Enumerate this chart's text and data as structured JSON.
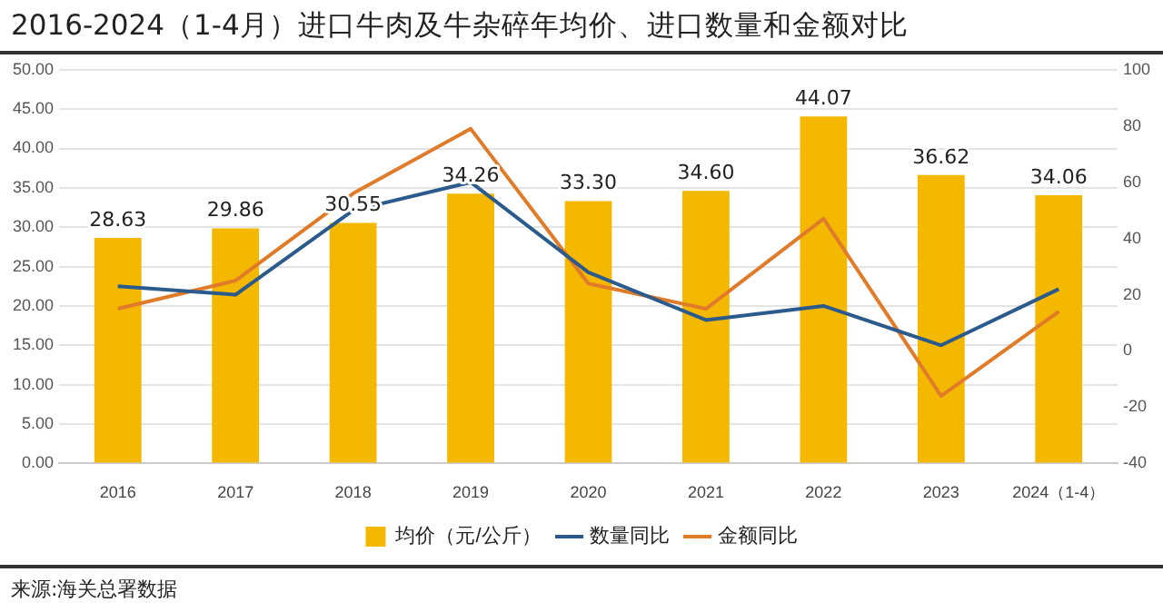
{
  "chart_data": {
    "type": "bar",
    "title": "2016-2024（1-4月）进口牛肉及牛杂碎年均价、进口数量和金额对比",
    "categories": [
      "2016",
      "2017",
      "2018",
      "2019",
      "2020",
      "2021",
      "2022",
      "2023",
      "2024（1-4）"
    ],
    "series": [
      {
        "name": "均价（元/公斤）",
        "color": "#f5b800",
        "values": [
          28.63,
          29.86,
          30.55,
          34.26,
          33.3,
          34.6,
          44.07,
          36.62,
          34.06
        ],
        "value_labels": [
          "28.63",
          "29.86",
          "30.55",
          "34.26",
          "33.30",
          "34.60",
          "44.07",
          "36.62",
          "34.06"
        ]
      },
      {
        "name": "数量同比",
        "type": "line",
        "axis": "y2",
        "color": "#2b5a8c",
        "values": [
          23,
          20,
          50,
          60,
          28,
          11,
          16,
          2,
          22
        ]
      },
      {
        "name": "金额同比",
        "type": "line",
        "axis": "y2",
        "color": "#e07b29",
        "values": [
          15,
          25,
          56,
          79,
          24,
          15,
          47,
          -16,
          14
        ]
      }
    ],
    "ylim": [
      0,
      50
    ],
    "yticks": [
      {
        "value": 0,
        "label": "0.00"
      },
      {
        "value": 5,
        "label": "5.00"
      },
      {
        "value": 10,
        "label": "10.00"
      },
      {
        "value": 15,
        "label": "15.00"
      },
      {
        "value": 20,
        "label": "20.00"
      },
      {
        "value": 25,
        "label": "25.00"
      },
      {
        "value": 30,
        "label": "30.00"
      },
      {
        "value": 35,
        "label": "35.00"
      },
      {
        "value": 40,
        "label": "40.00"
      },
      {
        "value": 45,
        "label": "45.00"
      },
      {
        "value": 50,
        "label": "50.00"
      }
    ],
    "y2lim": [
      -40,
      100
    ],
    "y2ticks": [
      -40,
      -20,
      0,
      20,
      40,
      60,
      80,
      100
    ],
    "grid": "y",
    "legend": "bottom",
    "marker": "none",
    "line_style": "solid",
    "annotations": [
      "来源:海关总署数据"
    ]
  }
}
